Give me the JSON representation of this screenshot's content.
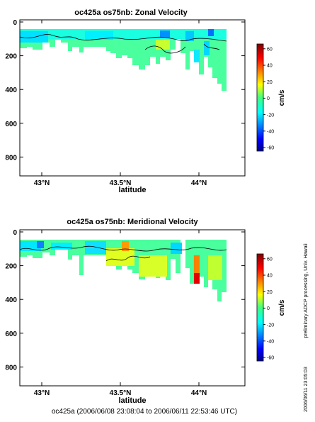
{
  "panels": [
    {
      "title": "oc425a os75nb: Zonal Velocity",
      "xlabel": "latitude",
      "colorbar_label": "cm/s"
    },
    {
      "title": "oc425a os75nb: Meridional Velocity",
      "xlabel": "latitude",
      "colorbar_label": "cm/s"
    }
  ],
  "footer": "oc425a (2006/06/08 23:08:04 to 2006/06/11 22:53:46 UTC)",
  "side_note": "preliminary ADCP processing,   Univ. Hawaii",
  "side_timestamp": "2006/06/11 23:05:03",
  "chart_data": [
    {
      "type": "heatmap",
      "title": "oc425a os75nb: Zonal Velocity",
      "xlabel": "latitude",
      "ylabel": "",
      "x_ticks": [
        {
          "value": 43.0,
          "label": "43°N"
        },
        {
          "value": 43.5,
          "label": "43.5°N"
        },
        {
          "value": 44.0,
          "label": "44°N"
        }
      ],
      "xlim": [
        42.87,
        44.27
      ],
      "y_ticks": [
        {
          "value": 0,
          "label": "0"
        },
        {
          "value": 200,
          "label": "200"
        },
        {
          "value": 400,
          "label": "400"
        },
        {
          "value": 600,
          "label": "600"
        },
        {
          "value": 800,
          "label": "800"
        }
      ],
      "ylim": [
        920,
        0
      ],
      "y_inverted": true,
      "colorbar": {
        "label": "cm/s",
        "range": [
          -65,
          65
        ],
        "ticks": [
          60,
          40,
          20,
          0,
          -20,
          -40,
          -60
        ],
        "colormap": "jet"
      },
      "data_extent": {
        "lat_min": 42.87,
        "lat_max": 44.16,
        "depth_min": 40
      },
      "profiles": [
        {
          "lat": 42.87,
          "depth_max": 170,
          "u": 0
        },
        {
          "lat": 42.95,
          "depth_max": 150,
          "u": 5
        },
        {
          "lat": 43.05,
          "depth_max": 160,
          "u": 10
        },
        {
          "lat": 43.15,
          "depth_max": 130,
          "u": 8
        },
        {
          "lat": 43.25,
          "depth_max": 140,
          "u": 12
        },
        {
          "lat": 43.35,
          "depth_max": 130,
          "u": 15
        },
        {
          "lat": 43.45,
          "depth_max": 180,
          "u": 10
        },
        {
          "lat": 43.55,
          "depth_max": 250,
          "u": 20
        },
        {
          "lat": 43.65,
          "depth_max": 290,
          "u": 18
        },
        {
          "lat": 43.75,
          "depth_max": 220,
          "u": 12
        },
        {
          "lat": 43.85,
          "depth_max": 180,
          "u": 15
        },
        {
          "lat": 43.95,
          "depth_max": 260,
          "u": -5
        },
        {
          "lat": 44.05,
          "depth_max": 330,
          "u": 10
        },
        {
          "lat": 44.15,
          "depth_max": 400,
          "u": 15
        }
      ]
    },
    {
      "type": "heatmap",
      "title": "oc425a os75nb: Meridional Velocity",
      "xlabel": "latitude",
      "ylabel": "",
      "x_ticks": [
        {
          "value": 43.0,
          "label": "43°N"
        },
        {
          "value": 43.5,
          "label": "43.5°N"
        },
        {
          "value": 44.0,
          "label": "44°N"
        }
      ],
      "xlim": [
        42.87,
        44.27
      ],
      "y_ticks": [
        {
          "value": 0,
          "label": "0"
        },
        {
          "value": 200,
          "label": "200"
        },
        {
          "value": 400,
          "label": "400"
        },
        {
          "value": 600,
          "label": "600"
        },
        {
          "value": 800,
          "label": "800"
        }
      ],
      "ylim": [
        920,
        0
      ],
      "y_inverted": true,
      "colorbar": {
        "label": "cm/s",
        "range": [
          -65,
          65
        ],
        "ticks": [
          60,
          40,
          20,
          0,
          -20,
          -40,
          -60
        ],
        "colormap": "jet"
      },
      "data_extent": {
        "lat_min": 42.87,
        "lat_max": 44.16,
        "depth_min": 40
      },
      "profiles": [
        {
          "lat": 42.87,
          "depth_max": 170,
          "v": -5
        },
        {
          "lat": 42.95,
          "depth_max": 150,
          "v": 0
        },
        {
          "lat": 43.05,
          "depth_max": 160,
          "v": 0
        },
        {
          "lat": 43.15,
          "depth_max": 130,
          "v": -5
        },
        {
          "lat": 43.25,
          "depth_max": 140,
          "v": 0
        },
        {
          "lat": 43.35,
          "depth_max": 130,
          "v": 5
        },
        {
          "lat": 43.45,
          "depth_max": 180,
          "v": 20
        },
        {
          "lat": 43.55,
          "depth_max": 250,
          "v": 20
        },
        {
          "lat": 43.65,
          "depth_max": 290,
          "v": 25
        },
        {
          "lat": 43.75,
          "depth_max": 220,
          "v": 15
        },
        {
          "lat": 43.85,
          "depth_max": 180,
          "v": 10
        },
        {
          "lat": 43.95,
          "depth_max": 300,
          "v": 45
        },
        {
          "lat": 44.05,
          "depth_max": 360,
          "v": 10
        },
        {
          "lat": 44.15,
          "depth_max": 420,
          "v": 15
        }
      ]
    }
  ]
}
